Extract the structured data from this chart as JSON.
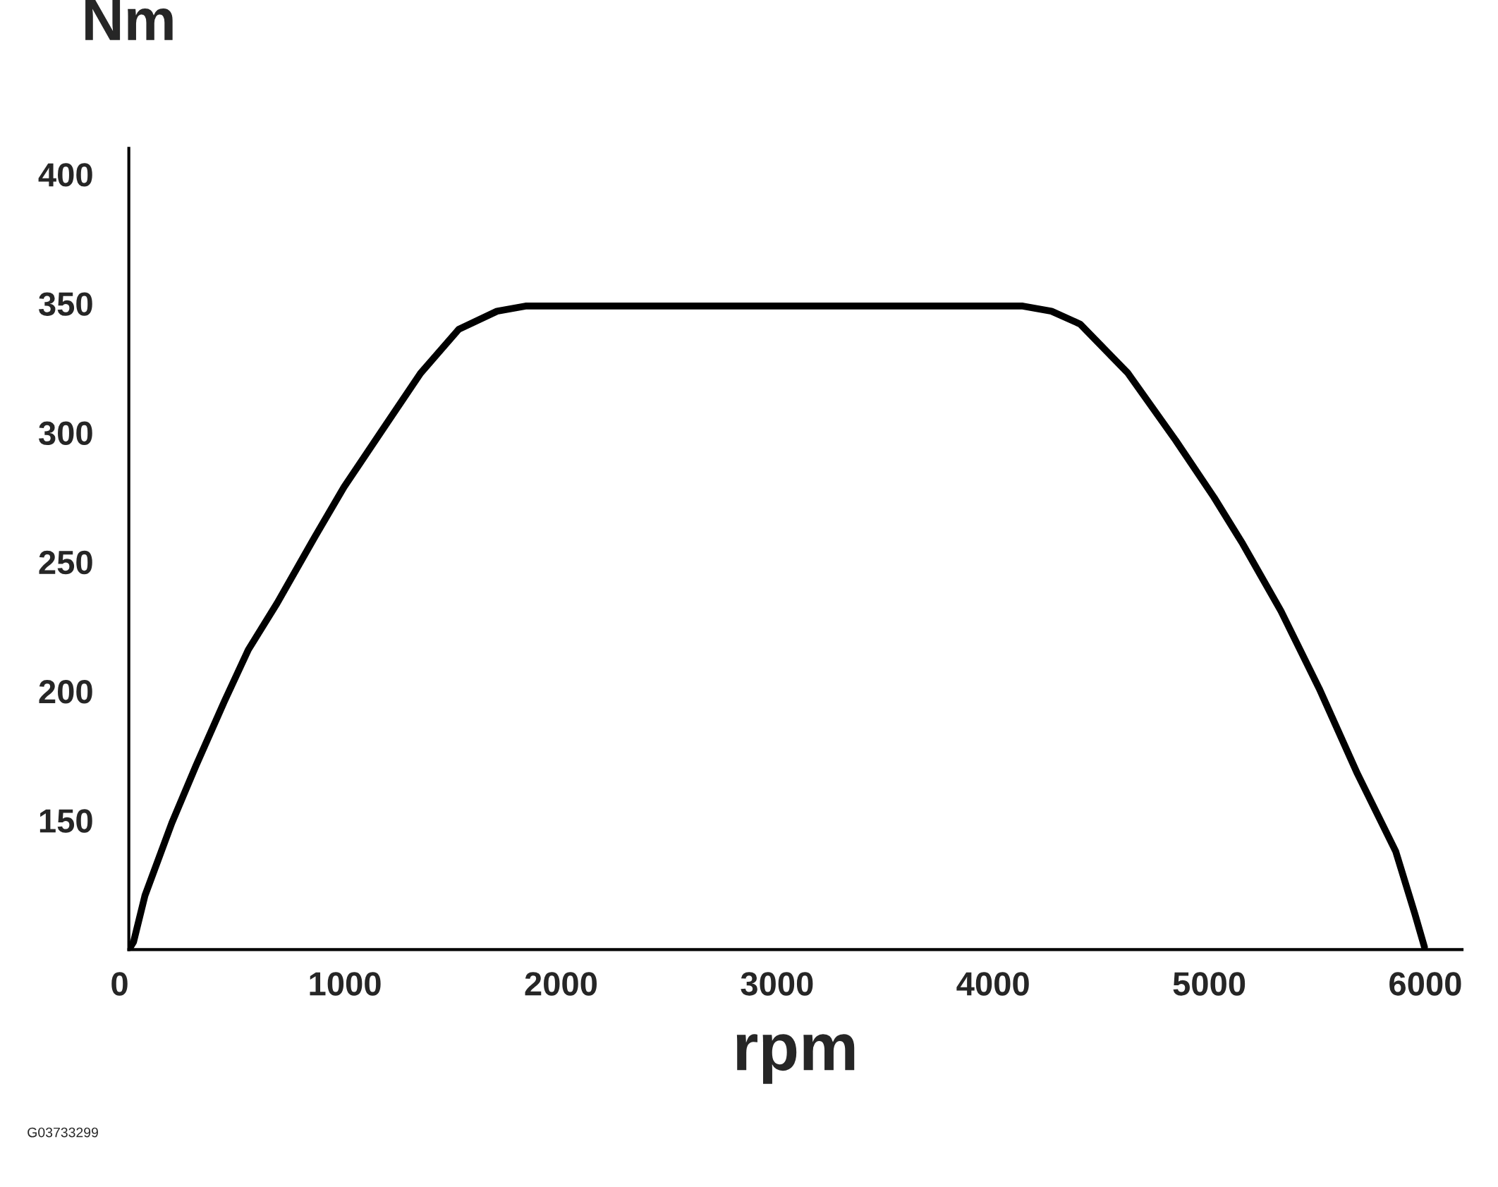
{
  "chart_data": {
    "type": "line",
    "xlabel": "rpm",
    "ylabel": "Nm",
    "annotations": [
      "G03733299"
    ],
    "x": [
      0,
      22,
      75,
      199,
      310,
      442,
      553,
      686,
      863,
      996,
      1173,
      1350,
      1527,
      1704,
      1836,
      4137,
      4270,
      4403,
      4624,
      4845,
      5022,
      5155,
      5332,
      5509,
      5686,
      5863,
      5951,
      5996
    ],
    "series": [
      {
        "color": "#000000",
        "values": [
          100,
          103,
          121,
          149,
          171,
          196,
          216,
          234,
          260,
          279,
          301,
          323,
          340,
          347,
          349,
          349,
          347,
          342,
          323,
          297,
          275,
          257,
          231,
          201,
          168,
          138,
          114,
          101
        ]
      }
    ],
    "xlim": [
      0,
      6170
    ],
    "ylim": [
      100,
      410
    ],
    "xticks": [
      0,
      1000,
      2000,
      3000,
      4000,
      5000,
      6000
    ],
    "yticks": [
      150,
      200,
      250,
      300,
      350,
      400
    ],
    "grid": false,
    "legend": false,
    "marker": "none",
    "line_style": "solid"
  }
}
